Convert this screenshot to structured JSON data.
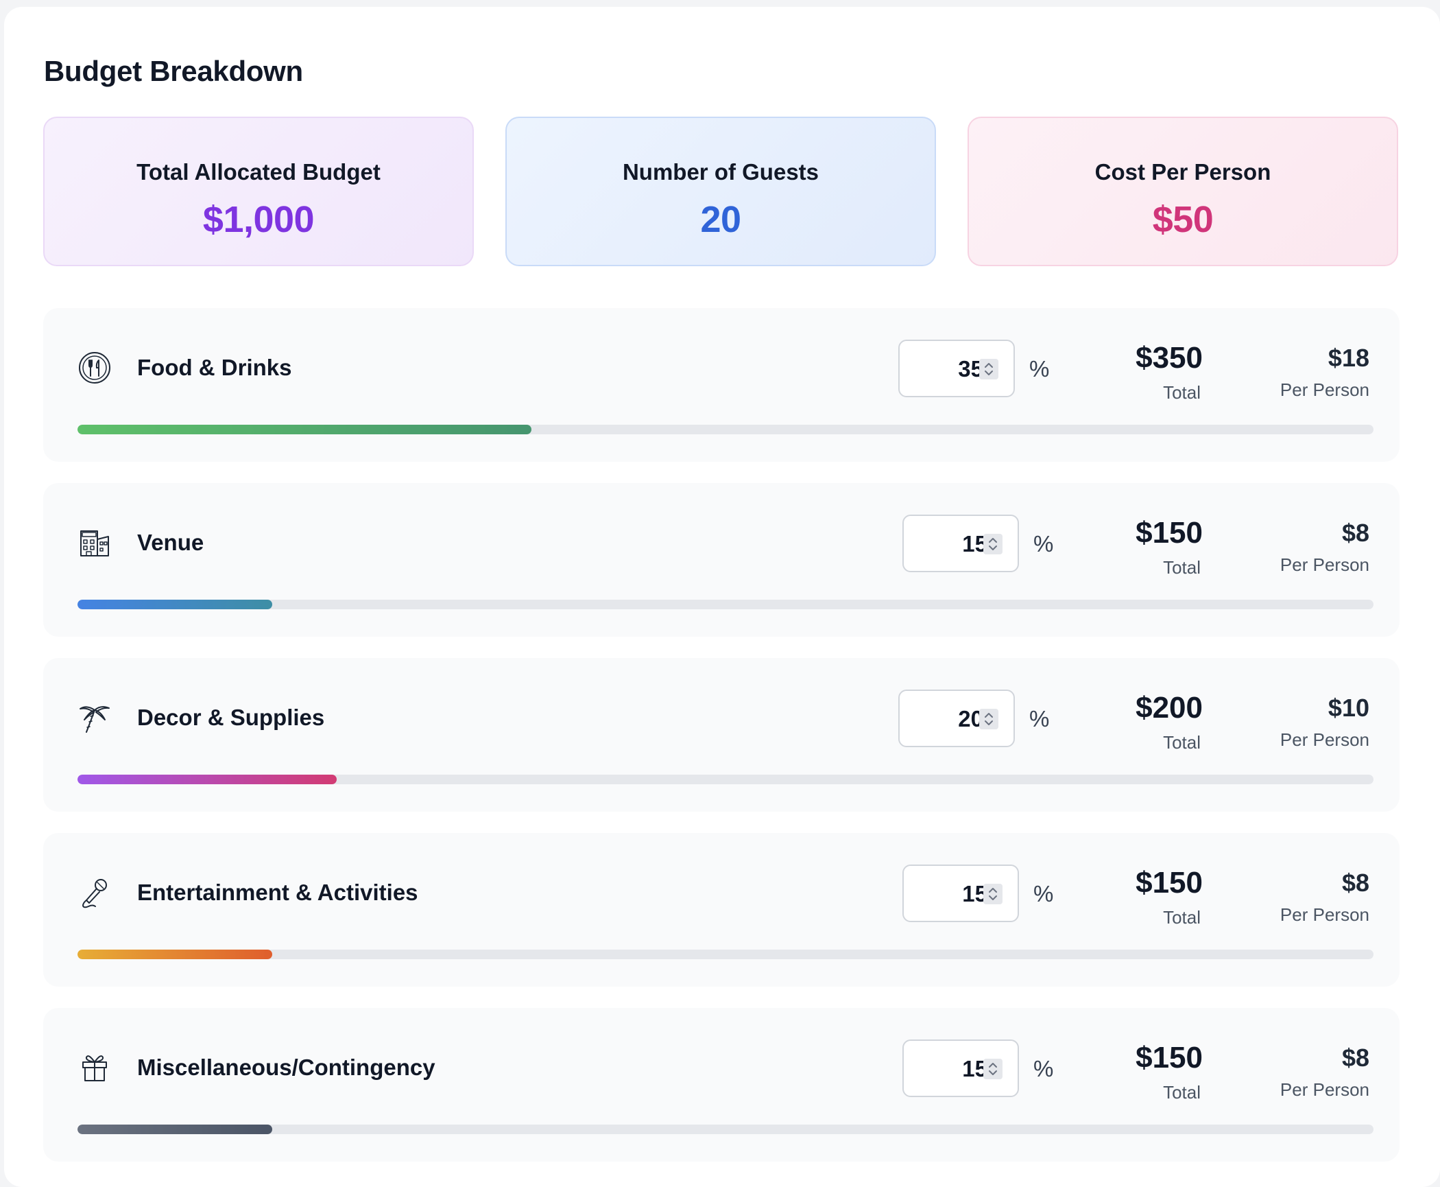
{
  "header": {
    "title": "Budget Breakdown"
  },
  "summary": {
    "budget": {
      "label": "Total Allocated Budget",
      "value": "$1,000"
    },
    "guests": {
      "label": "Number of Guests",
      "value": "20"
    },
    "cost_per_person": {
      "label": "Cost Per Person",
      "value": "$50"
    }
  },
  "labels": {
    "percent_sign": "%",
    "total": "Total",
    "per_person": "Per Person"
  },
  "categories": [
    {
      "name": "Food & Drinks",
      "icon": "utensils-icon",
      "percent": "35",
      "percent_value": 35,
      "total": "$350",
      "per_person": "$18",
      "bar_color_start": "#5fc06a",
      "bar_color_end": "#46956f"
    },
    {
      "name": "Venue",
      "icon": "hotel-icon",
      "percent": "15",
      "percent_value": 15,
      "total": "$150",
      "per_person": "$8",
      "bar_color_start": "#4583e3",
      "bar_color_end": "#3e8ea5"
    },
    {
      "name": "Decor & Supplies",
      "icon": "palm-tree-icon",
      "percent": "20",
      "percent_value": 20,
      "total": "$200",
      "per_person": "$10",
      "bar_color_start": "#a058e8",
      "bar_color_end": "#d23b73"
    },
    {
      "name": "Entertainment & Activities",
      "icon": "microphone-icon",
      "percent": "15",
      "percent_value": 15,
      "total": "$150",
      "per_person": "$8",
      "bar_color_start": "#e7ad36",
      "bar_color_end": "#df5e2d"
    },
    {
      "name": "Miscellaneous/Contingency",
      "icon": "gift-icon",
      "percent": "15",
      "percent_value": 15,
      "total": "$150",
      "per_person": "$8",
      "bar_color_start": "#6b7280",
      "bar_color_end": "#4b5566"
    }
  ]
}
